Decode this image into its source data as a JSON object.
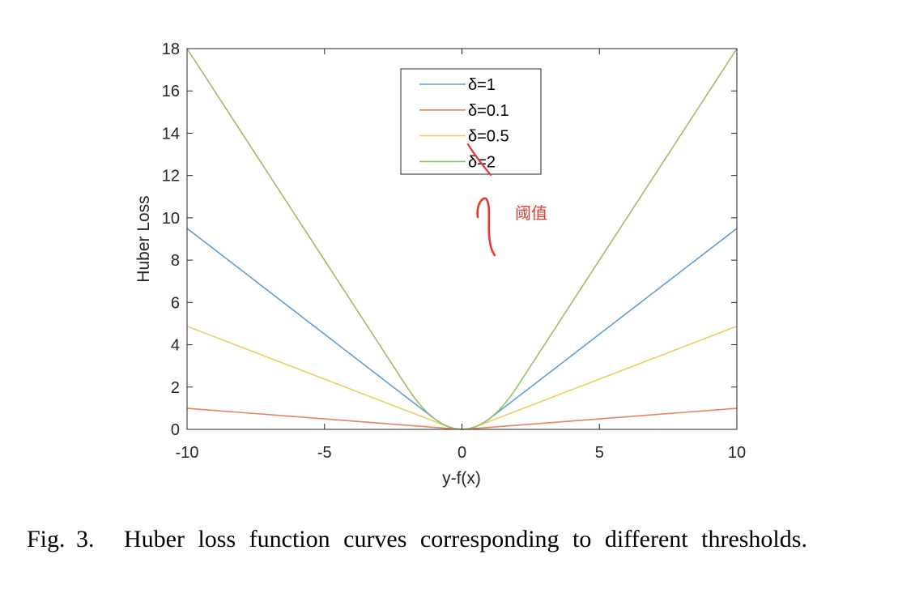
{
  "caption": {
    "label": "Fig. 3.",
    "text": "Huber loss function curves corresponding to different thresholds."
  },
  "chart_data": {
    "type": "line",
    "xlabel": "y-f(x)",
    "ylabel": "Huber Loss",
    "xlim": [
      -10,
      10
    ],
    "ylim": [
      0,
      18
    ],
    "xticks": [
      -10,
      -5,
      0,
      5,
      10
    ],
    "xtick_labels": [
      "-10",
      "-5",
      "0",
      "5",
      "10"
    ],
    "yticks": [
      0,
      2,
      4,
      6,
      8,
      10,
      12,
      14,
      16,
      18
    ],
    "ytick_labels": [
      "0",
      "2",
      "4",
      "6",
      "8",
      "10",
      "12",
      "14",
      "16",
      "18"
    ],
    "grid": false,
    "box": true,
    "legend_position": "top-center",
    "x": [
      -10,
      -8,
      -6,
      -4,
      -2,
      -1.75,
      -1.5,
      -1.25,
      -1,
      -0.75,
      -0.5,
      -0.25,
      0,
      0.25,
      0.5,
      0.75,
      1,
      1.25,
      1.5,
      1.75,
      2,
      4,
      6,
      8,
      10
    ],
    "series": [
      {
        "name": "δ=1",
        "color": "#5e9fd6",
        "values": [
          9.5,
          7.5,
          5.5,
          3.5,
          1.5,
          1.25,
          1.0,
          0.75,
          0.5,
          0.281,
          0.125,
          0.031,
          0,
          0.031,
          0.125,
          0.281,
          0.5,
          0.75,
          1.0,
          1.25,
          1.5,
          3.5,
          5.5,
          7.5,
          9.5
        ]
      },
      {
        "name": "δ=0.1",
        "color": "#e5835e",
        "values": [
          0.995,
          0.795,
          0.595,
          0.395,
          0.195,
          0.17,
          0.145,
          0.12,
          0.095,
          0.07,
          0.045,
          0.02,
          0,
          0.02,
          0.045,
          0.07,
          0.095,
          0.12,
          0.145,
          0.17,
          0.195,
          0.395,
          0.595,
          0.795,
          0.995
        ]
      },
      {
        "name": "δ=0.5",
        "color": "#f0cd63",
        "values": [
          4.875,
          3.875,
          2.875,
          1.875,
          0.875,
          0.75,
          0.625,
          0.5,
          0.375,
          0.25,
          0.125,
          0.031,
          0,
          0.031,
          0.125,
          0.25,
          0.375,
          0.5,
          0.625,
          0.75,
          0.875,
          1.875,
          2.875,
          3.875,
          4.875
        ]
      },
      {
        "name": "δ=2",
        "color": "#93c163",
        "values": [
          18,
          14,
          10,
          6,
          2,
          1.531,
          1.125,
          0.781,
          0.5,
          0.281,
          0.125,
          0.031,
          0,
          0.031,
          0.125,
          0.281,
          0.5,
          0.781,
          1.125,
          1.531,
          2,
          6,
          10,
          14,
          18
        ]
      }
    ],
    "annotations": [
      {
        "text": "阈值",
        "color": "#e53935",
        "style": "handwritten"
      }
    ]
  }
}
